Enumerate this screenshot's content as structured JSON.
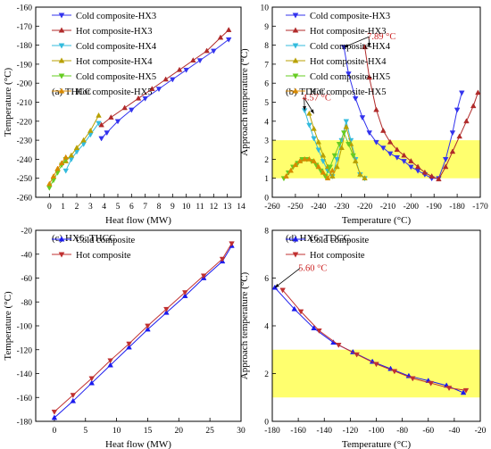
{
  "colors": {
    "cold_hx3": "#3333ee",
    "hot_hx3": "#b02a2a",
    "cold_hx4": "#33bbdd",
    "hot_hx4": "#b8a000",
    "cold_hx5": "#66cc22",
    "hot_hx5": "#d88a00",
    "band": "#ffff55",
    "annotation": "#cc2222",
    "cold6": "#1a1aee",
    "hot6": "#c03030"
  },
  "chart_data": [
    {
      "id": "a",
      "type": "line",
      "panel_label": "(a) THCC",
      "xlabel": "Heat flow (MW)",
      "ylabel": "Temperature (°C)",
      "xlim": [
        -1,
        14
      ],
      "ylim": [
        -260,
        -160
      ],
      "xticks": [
        0,
        1,
        2,
        3,
        4,
        5,
        6,
        7,
        8,
        9,
        10,
        11,
        12,
        13,
        14
      ],
      "yticks": [
        -260,
        -250,
        -240,
        -230,
        -220,
        -210,
        -200,
        -190,
        -180,
        -170,
        -160
      ],
      "series": [
        {
          "name": "Cold composite-HX3",
          "marker": "tri-down",
          "color_key": "cold_hx3",
          "x": [
            3.8,
            4.2,
            5.0,
            6.0,
            7.0,
            8.0,
            9.0,
            10.0,
            11.0,
            12.0,
            13.1
          ],
          "y": [
            -229,
            -226,
            -220,
            -214,
            -208,
            -203,
            -198,
            -193,
            -188,
            -183,
            -177
          ]
        },
        {
          "name": "Hot composite-HX3",
          "marker": "tri-up",
          "color_key": "hot_hx3",
          "x": [
            3.8,
            4.5,
            5.5,
            6.5,
            7.5,
            8.5,
            9.5,
            10.5,
            11.5,
            12.5,
            13.1
          ],
          "y": [
            -222,
            -218,
            -213,
            -208,
            -203,
            -198,
            -193,
            -188,
            -183,
            -176,
            -172
          ]
        },
        {
          "name": "Cold composite-HX4",
          "marker": "tri-down",
          "color_key": "cold_hx4",
          "x": [
            1.2,
            1.6,
            2.0,
            2.5,
            3.0,
            3.6
          ],
          "y": [
            -246,
            -240,
            -236,
            -232,
            -227,
            -221
          ]
        },
        {
          "name": "Hot composite-HX4",
          "marker": "tri-up",
          "color_key": "hot_hx4",
          "x": [
            1.2,
            1.6,
            2.0,
            2.5,
            3.0,
            3.6
          ],
          "y": [
            -241,
            -238,
            -234,
            -230,
            -225,
            -217
          ]
        },
        {
          "name": "Cold composite-HX5",
          "marker": "tri-down",
          "color_key": "cold_hx5",
          "x": [
            0.0,
            0.3,
            0.6,
            0.9,
            1.2
          ],
          "y": [
            -255,
            -251,
            -247,
            -243,
            -240
          ]
        },
        {
          "name": "Hot composite-HX5",
          "marker": "tri-up",
          "color_key": "hot_hx5",
          "x": [
            0.0,
            0.3,
            0.6,
            0.9,
            1.2
          ],
          "y": [
            -253,
            -249,
            -245,
            -242,
            -239
          ]
        }
      ],
      "legend_placement": "top-left"
    },
    {
      "id": "b",
      "type": "line",
      "panel_label": "(b) TDCC",
      "xlabel": "Temperature (°C)",
      "ylabel": "Approach temperature (°C)",
      "xlim": [
        -260,
        -170
      ],
      "ylim": [
        0,
        10
      ],
      "xticks": [
        -260,
        -250,
        -240,
        -230,
        -220,
        -210,
        -200,
        -190,
        -180,
        -170
      ],
      "yticks": [
        0,
        1,
        2,
        3,
        4,
        5,
        6,
        7,
        8,
        9,
        10
      ],
      "band": [
        1,
        3
      ],
      "annotations": [
        {
          "text": "7.89 °C",
          "at": [
            -219,
            8.3
          ],
          "arrows_to": [
            [
              -229,
              7.89
            ],
            [
              -218,
              7.9
            ]
          ]
        },
        {
          "text": "4.57 °C",
          "at": [
            -247,
            5.1
          ],
          "arrows_to": [
            [
              -246,
              4.57
            ],
            [
              -242,
              4.4
            ]
          ]
        }
      ],
      "series": [
        {
          "name": "Cold composite-HX3",
          "marker": "tri-down",
          "color_key": "cold_hx3",
          "x": [
            -229,
            -227,
            -224,
            -221,
            -218,
            -215,
            -212,
            -209,
            -206,
            -203,
            -200,
            -197,
            -194,
            -191,
            -188,
            -185,
            -182,
            -180,
            -178
          ],
          "y": [
            7.89,
            6.5,
            5.2,
            4.2,
            3.4,
            2.9,
            2.6,
            2.3,
            2.1,
            1.9,
            1.6,
            1.4,
            1.2,
            1.0,
            1.0,
            2.0,
            3.4,
            4.6,
            5.5
          ]
        },
        {
          "name": "Hot composite-HX3",
          "marker": "tri-up",
          "color_key": "hot_hx3",
          "x": [
            -220,
            -218,
            -215,
            -212,
            -209,
            -206,
            -203,
            -200,
            -197,
            -194,
            -191,
            -188,
            -185,
            -182,
            -179,
            -176,
            -173,
            -171
          ],
          "y": [
            7.9,
            6.3,
            4.6,
            3.5,
            2.9,
            2.5,
            2.2,
            1.9,
            1.6,
            1.3,
            1.1,
            0.95,
            1.6,
            2.4,
            3.2,
            4.0,
            4.8,
            5.5
          ]
        },
        {
          "name": "Cold composite-HX4",
          "marker": "tri-down",
          "color_key": "cold_hx4",
          "x": [
            -246,
            -244,
            -242,
            -240,
            -238,
            -236,
            -234,
            -232,
            -230,
            -228,
            -226,
            -224,
            -222,
            -220
          ],
          "y": [
            4.57,
            3.8,
            3.1,
            2.5,
            1.9,
            1.4,
            1.1,
            2.0,
            3.0,
            4.0,
            3.0,
            2.0,
            1.2,
            1.0
          ]
        },
        {
          "name": "Hot composite-HX4",
          "marker": "tri-up",
          "color_key": "hot_hx4",
          "x": [
            -244,
            -242,
            -240,
            -238,
            -236,
            -234,
            -232,
            -230,
            -228,
            -226,
            -224,
            -222,
            -220
          ],
          "y": [
            4.4,
            3.6,
            2.9,
            2.2,
            1.6,
            1.1,
            1.6,
            2.6,
            3.7,
            2.8,
            1.9,
            1.2,
            1.0
          ]
        },
        {
          "name": "Cold composite-HX5",
          "marker": "tri-down",
          "color_key": "cold_hx5",
          "x": [
            -255,
            -253,
            -251,
            -249,
            -247,
            -245,
            -243,
            -241,
            -239,
            -237,
            -235,
            -233,
            -231,
            -229,
            -227,
            -225
          ],
          "y": [
            1.0,
            1.3,
            1.6,
            1.8,
            2.0,
            2.0,
            1.9,
            1.7,
            1.4,
            1.1,
            1.6,
            2.2,
            2.8,
            3.4,
            2.8,
            2.2
          ]
        },
        {
          "name": "Hot composite-HX5",
          "marker": "tri-up",
          "color_key": "hot_hx5",
          "x": [
            -254,
            -252,
            -250,
            -248,
            -246,
            -244,
            -242,
            -240,
            -238,
            -236,
            -234
          ],
          "y": [
            1.1,
            1.4,
            1.7,
            1.9,
            2.0,
            2.0,
            1.9,
            1.6,
            1.3,
            1.0,
            1.4
          ]
        }
      ],
      "legend_placement": "top-left"
    },
    {
      "id": "c",
      "type": "line",
      "panel_label": "(c) HX6: THCC",
      "xlabel": "Heat flow (MW)",
      "ylabel": "Temperature (°C)",
      "xlim": [
        -3,
        30
      ],
      "ylim": [
        -180,
        -20
      ],
      "xticks": [
        0,
        5,
        10,
        15,
        20,
        25,
        30
      ],
      "yticks": [
        -180,
        -160,
        -140,
        -120,
        -100,
        -80,
        -60,
        -40,
        -20
      ],
      "series": [
        {
          "name": "Cold composite",
          "marker": "tri-up",
          "color_key": "cold6",
          "x": [
            0,
            3,
            6,
            9,
            12,
            15,
            18,
            21,
            24,
            27,
            28.5
          ],
          "y": [
            -177,
            -163,
            -148,
            -133,
            -118,
            -103,
            -89,
            -75,
            -60,
            -46,
            -33
          ]
        },
        {
          "name": "Hot composite",
          "marker": "tri-down",
          "color_key": "hot6",
          "x": [
            0,
            3,
            6,
            9,
            12,
            15,
            18,
            21,
            24,
            27,
            28.5
          ],
          "y": [
            -172,
            -158,
            -144,
            -129,
            -115,
            -100,
            -86,
            -72,
            -58,
            -44,
            -31
          ]
        }
      ],
      "legend_placement": "top-left"
    },
    {
      "id": "d",
      "type": "line",
      "panel_label": "(d) HX6: TDCC",
      "xlabel": "Temperature (°C)",
      "ylabel": "Approach temperature (°C)",
      "xlim": [
        -180,
        -20
      ],
      "ylim": [
        0,
        8
      ],
      "xticks": [
        -180,
        -160,
        -140,
        -120,
        -100,
        -80,
        -60,
        -40,
        -20
      ],
      "yticks": [
        0,
        2,
        4,
        6,
        8
      ],
      "band": [
        1,
        3
      ],
      "annotations": [
        {
          "text": "5.60 °C",
          "at": [
            -160,
            6.3
          ],
          "arrows_to": [
            [
              -178,
              5.6
            ]
          ]
        }
      ],
      "series": [
        {
          "name": "Cold composite",
          "marker": "tri-up",
          "color_key": "cold6",
          "x": [
            -178,
            -163,
            -148,
            -133,
            -118,
            -103,
            -89,
            -75,
            -60,
            -46,
            -33
          ],
          "y": [
            5.6,
            4.7,
            3.9,
            3.3,
            2.9,
            2.5,
            2.2,
            1.9,
            1.7,
            1.5,
            1.2
          ]
        },
        {
          "name": "Hot composite",
          "marker": "tri-down",
          "color_key": "hot6",
          "x": [
            -172,
            -158,
            -144,
            -129,
            -115,
            -100,
            -86,
            -72,
            -58,
            -44,
            -31
          ],
          "y": [
            5.5,
            4.6,
            3.8,
            3.2,
            2.8,
            2.4,
            2.1,
            1.8,
            1.6,
            1.4,
            1.3
          ]
        }
      ],
      "legend_placement": "top-left"
    }
  ]
}
